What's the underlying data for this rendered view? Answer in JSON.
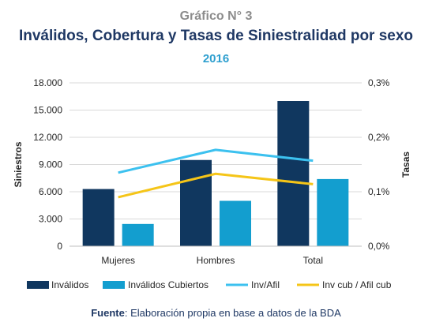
{
  "header": {
    "supertitle": "Gráfico N° 3",
    "title": "Inválidos, Cobertura y Tasas de Siniestralidad por sexo",
    "year": "2016"
  },
  "source": {
    "label": "Fuente",
    "text": ": Elaboración propia en base a datos de la BDA"
  },
  "colors": {
    "invalidos": "#10375f",
    "invalidos_cubiertos": "#139ecf",
    "inv_afil": "#3cc1ef",
    "inv_cub_afil_cub": "#f5c518",
    "axis_text": "#262626",
    "grid": "#d9d9d9"
  },
  "chart_data": {
    "type": "bar",
    "categories": [
      "Mujeres",
      "Hombres",
      "Total"
    ],
    "ylabel": "Siniestros",
    "y2label": "Tasas",
    "ylim": [
      0,
      18000
    ],
    "y2lim": [
      0,
      0.3
    ],
    "y_ticks": [
      "0",
      "3.000",
      "6.000",
      "9.000",
      "12.000",
      "15.000",
      "18.000"
    ],
    "y2_ticks": [
      "0,0%",
      "0,1%",
      "0,2%",
      "0,3%"
    ],
    "legend_position": "bottom",
    "series": [
      {
        "name": "Inválidos",
        "type": "bar",
        "axis": "left",
        "values": [
          6300,
          9500,
          16000
        ]
      },
      {
        "name": "Inválidos Cubiertos",
        "type": "bar",
        "axis": "left",
        "values": [
          2450,
          5000,
          7400
        ]
      },
      {
        "name": "Inv/Afil",
        "type": "line",
        "axis": "right",
        "values": [
          0.135,
          0.177,
          0.157
        ]
      },
      {
        "name": "Inv cub / Afil cub",
        "type": "line",
        "axis": "right",
        "values": [
          0.09,
          0.133,
          0.114
        ]
      }
    ]
  }
}
